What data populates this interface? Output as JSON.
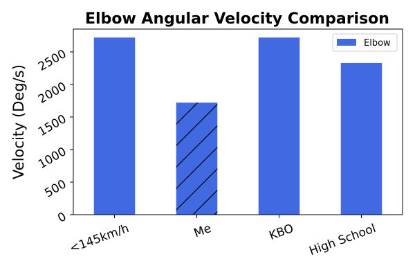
{
  "chart_data": {
    "type": "bar",
    "title": "Elbow Angular Velocity Comparison",
    "xlabel": "",
    "ylabel": "Velocity (Deg/s)",
    "categories": [
      "<145km/h",
      "Me",
      "KBO",
      "High School"
    ],
    "series": [
      {
        "name": "Elbow",
        "values": [
          2720,
          1720,
          2720,
          2330
        ]
      }
    ],
    "hatched_categories": [
      "Me"
    ],
    "ylim": [
      0,
      2850
    ],
    "yticks": [
      0,
      500,
      1000,
      1500,
      2000,
      2500
    ],
    "grid": false,
    "legend": "top-right",
    "bar_color": "#4169e1",
    "hatch_color": "#000000"
  }
}
